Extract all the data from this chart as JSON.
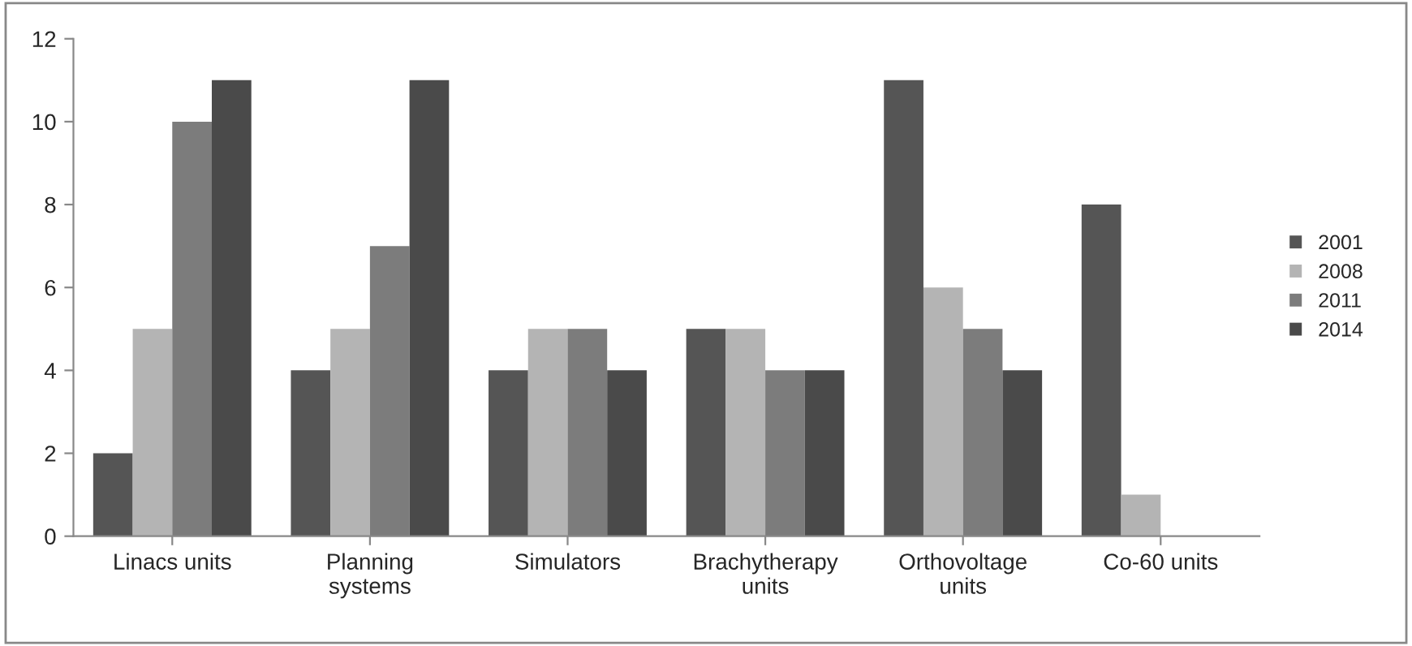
{
  "chart_data": {
    "type": "bar",
    "categories": [
      "Linacs units",
      "Planning\nsystems",
      "Simulators",
      "Brachytherapy\nunits",
      "Orthovoltage\nunits",
      "Co-60 units"
    ],
    "series": [
      {
        "name": "2001",
        "color": "#555555",
        "values": [
          2,
          4,
          4,
          5,
          11,
          8
        ]
      },
      {
        "name": "2008",
        "color": "#b4b4b4",
        "values": [
          5,
          5,
          5,
          5,
          6,
          1
        ]
      },
      {
        "name": "2011",
        "color": "#7c7c7c",
        "values": [
          10,
          7,
          5,
          4,
          5,
          0
        ]
      },
      {
        "name": "2014",
        "color": "#4a4a4a",
        "values": [
          11,
          11,
          4,
          4,
          4,
          0
        ]
      }
    ],
    "ylim": [
      0,
      12
    ],
    "yticks": [
      0,
      2,
      4,
      6,
      8,
      10,
      12
    ],
    "grid": false,
    "legend": "right"
  }
}
